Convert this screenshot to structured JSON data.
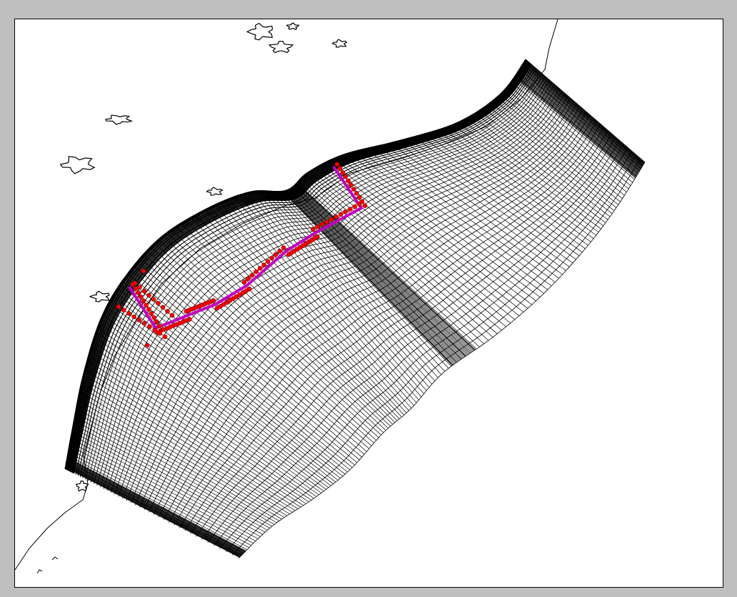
{
  "map": {
    "background": "#bfbfbf",
    "plot_background": "#ffffff",
    "coastline_color": "#000000",
    "grid_color": "#000000",
    "track_line_color": "#c000c0",
    "sample_point_color": "#ff0000",
    "elements": [
      "coastline",
      "curvilinear-model-grid",
      "ship-track",
      "sample-points"
    ]
  }
}
